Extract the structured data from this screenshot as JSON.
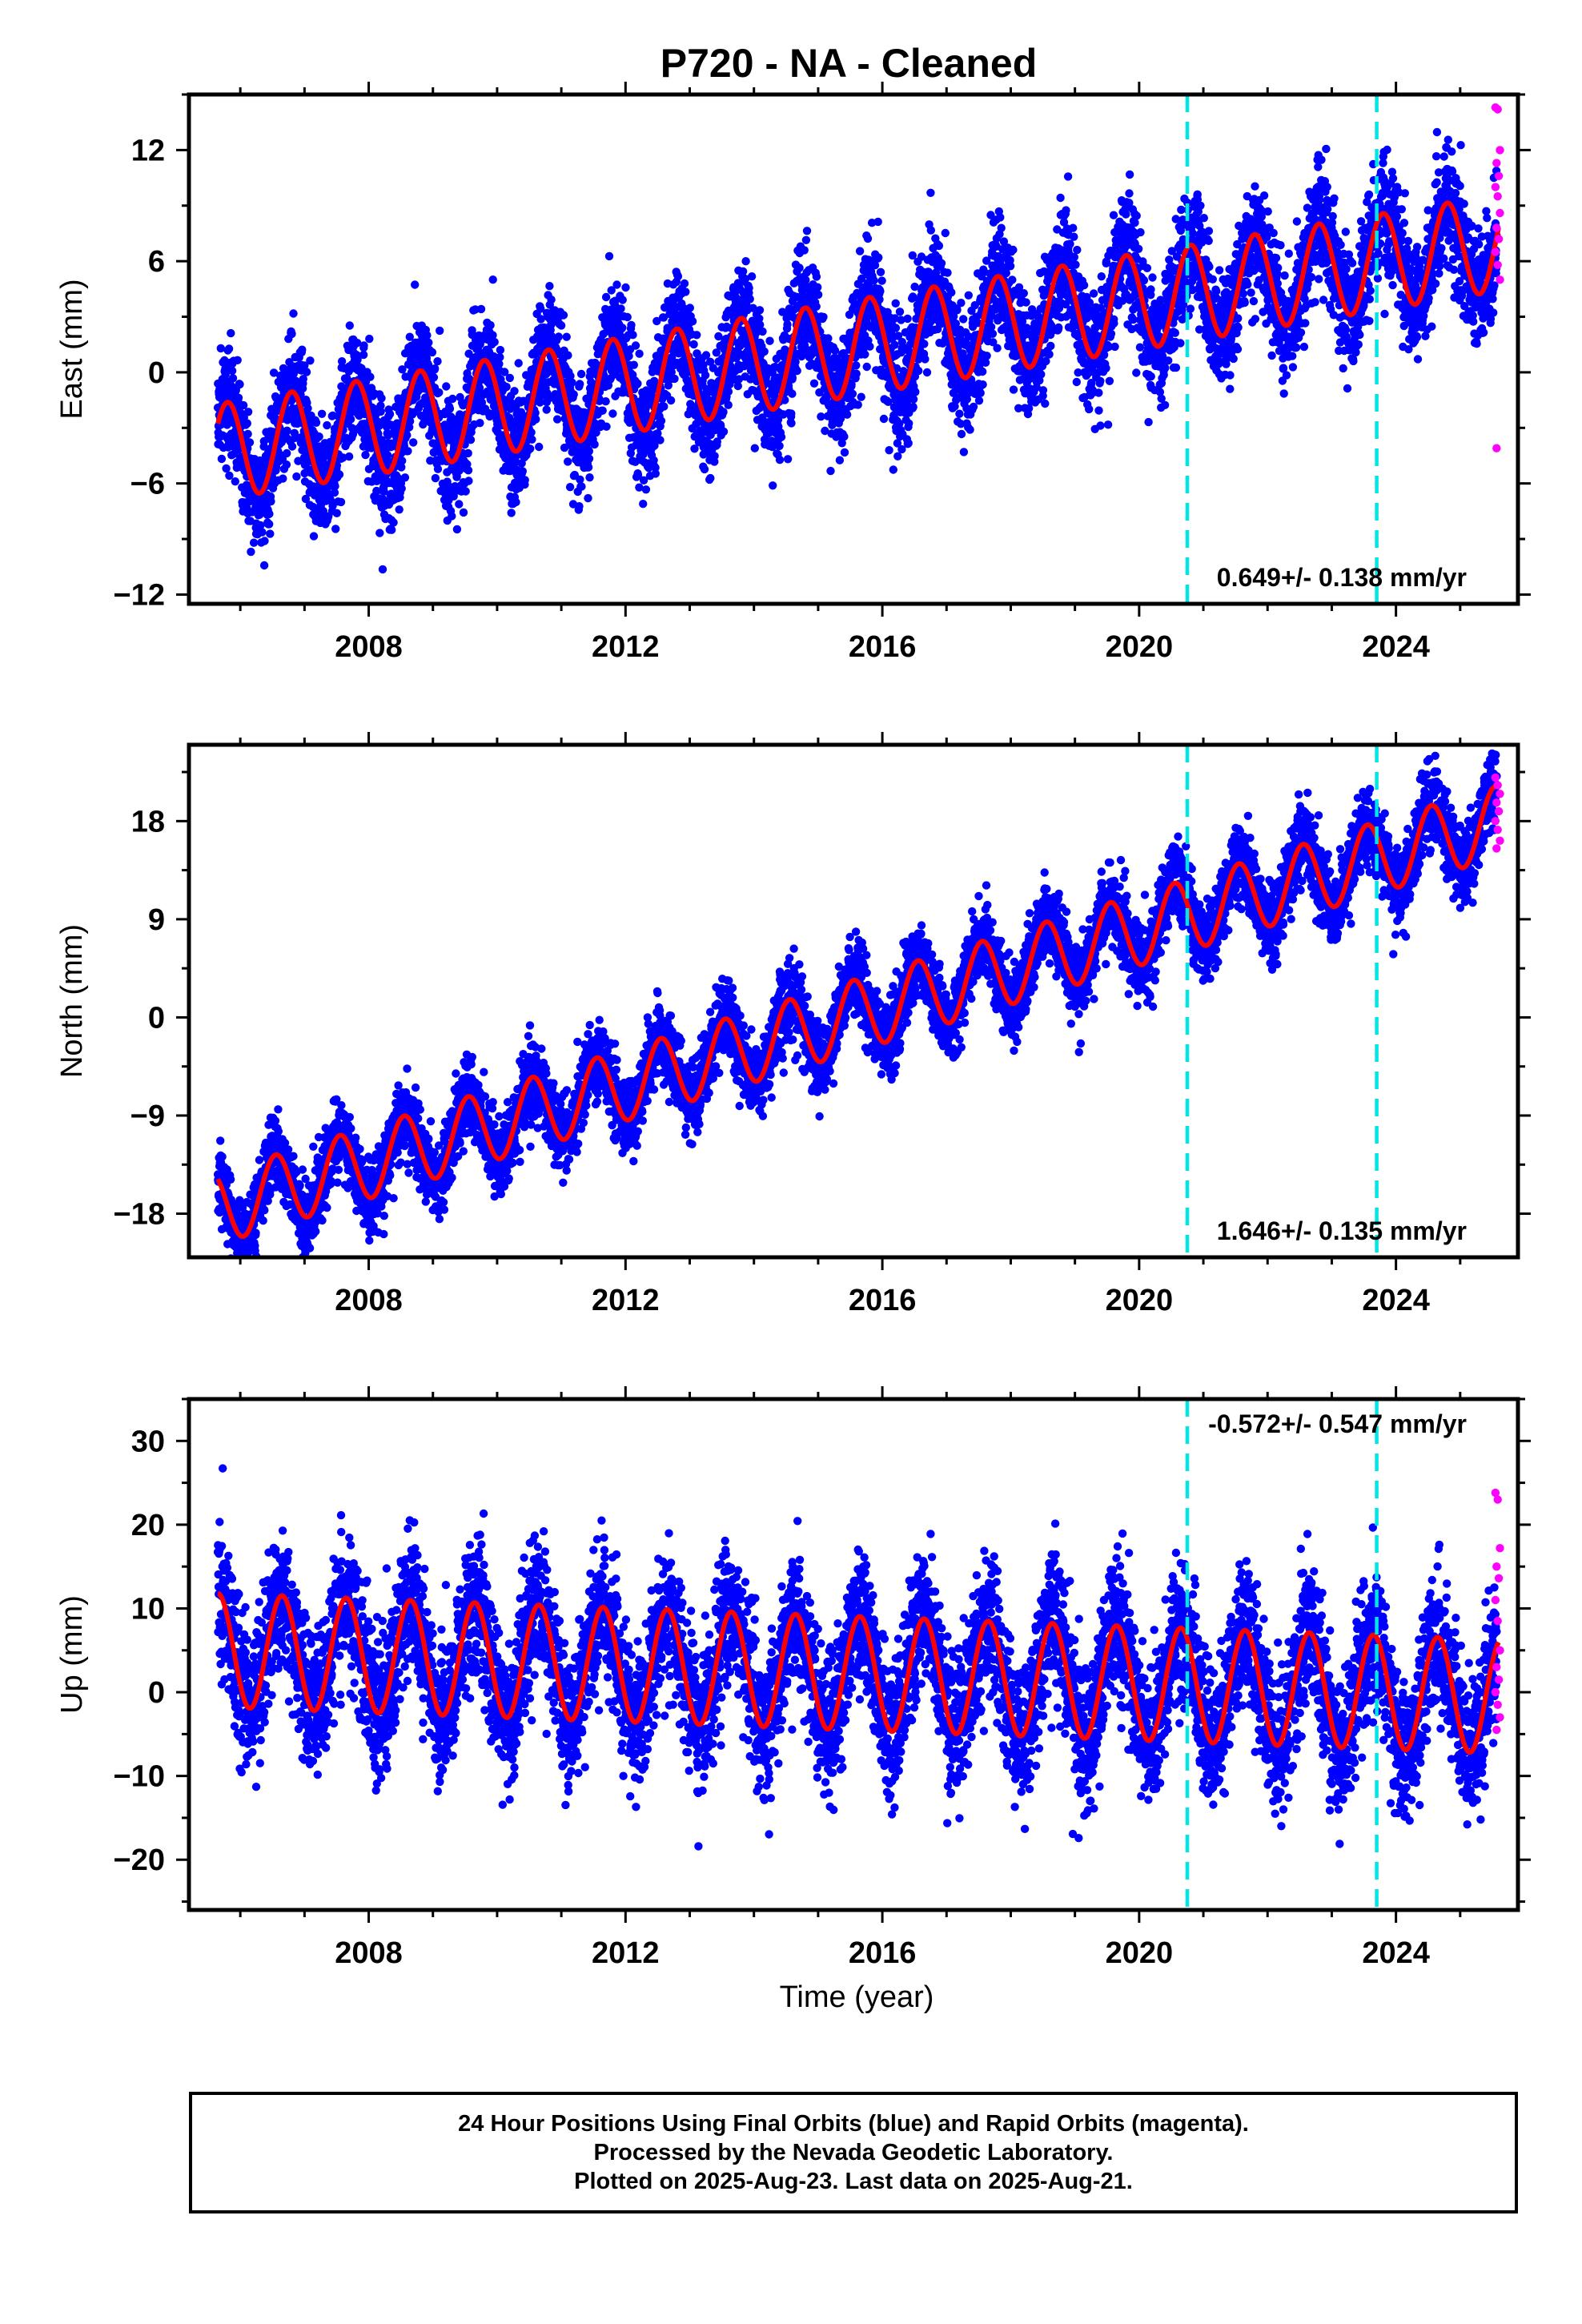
{
  "title": "P720  - NA - Cleaned",
  "colors": {
    "final_orbits": "#0000ff",
    "rapid_orbits": "#ff00ff",
    "model": "#ff0000",
    "markers": "#00e5e5"
  },
  "xlabel": "Time (year)",
  "chart_data": [
    {
      "type": "scatter",
      "ylabel": "East (mm)",
      "xlim": [
        2005.2,
        2025.9
      ],
      "ylim": [
        -12.5,
        15
      ],
      "xticks": [
        2008,
        2012,
        2016,
        2020,
        2024
      ],
      "yticks": [
        12,
        6,
        0,
        -6,
        -12
      ],
      "annotation": "0.649+/- 0.138 mm/yr",
      "vertical_markers": [
        2020.75,
        2023.7
      ],
      "model": {
        "start_year": 2005.65,
        "start_value": -4.3,
        "end_year": 2025.6,
        "end_value": 7.0,
        "seasonal_amplitude": 2.6,
        "peak_phase": 0.8
      },
      "scatter_range_mm": 4.5,
      "rapid_orbit_values": [
        14.3,
        14.2,
        12.0,
        11.3,
        10.6,
        10.0,
        9.5,
        8.6,
        7.8,
        7.2,
        6.5,
        5.8,
        5.0,
        -4.1
      ],
      "rapid_x_range": [
        2025.55,
        2025.62
      ],
      "grid": false
    },
    {
      "type": "scatter",
      "ylabel": "North (mm)",
      "xlim": [
        2005.2,
        2025.9
      ],
      "ylim": [
        -22,
        25
      ],
      "xticks": [
        2008,
        2012,
        2016,
        2020,
        2024
      ],
      "yticks": [
        18,
        9,
        0,
        -9,
        -18
      ],
      "annotation": "1.646+/- 0.135 mm/yr",
      "vertical_markers": [
        2020.75,
        2023.7
      ],
      "model": {
        "start_year": 2005.65,
        "start_value": -17.5,
        "end_year": 2025.6,
        "end_value": 18.0,
        "seasonal_amplitude": 3.3,
        "peak_phase": 0.55
      },
      "scatter_range_mm": 5.0,
      "rapid_orbit_values": [
        22.0,
        21.3,
        20.5,
        19.7,
        18.9,
        18.0,
        17.2,
        16.2,
        15.5
      ],
      "rapid_x_range": [
        2025.55,
        2025.62
      ],
      "grid": false
    },
    {
      "type": "scatter",
      "ylabel": "Up (mm)",
      "xlim": [
        2005.2,
        2025.9
      ],
      "ylim": [
        -26,
        35
      ],
      "xticks": [
        2008,
        2012,
        2016,
        2020,
        2024
      ],
      "yticks": [
        30,
        20,
        10,
        0,
        -10,
        -20
      ],
      "annotation": "-0.572+/- 0.547 mm/yr",
      "vertical_markers": [
        2020.75,
        2023.7
      ],
      "model": {
        "start_year": 2005.65,
        "start_value": 5.0,
        "end_year": 2025.6,
        "end_value": -0.5,
        "seasonal_amplitude": 6.8,
        "peak_phase": 0.65
      },
      "scatter_range_mm": 12.0,
      "rapid_orbit_values": [
        23.8,
        23.0,
        17.2,
        15.0,
        13.6,
        11.0,
        8.5,
        5.0,
        3.0,
        1.5,
        0.0,
        -1.5,
        -3.0,
        -4.5
      ],
      "rapid_x_range": [
        2025.55,
        2025.62
      ],
      "grid": false
    }
  ],
  "footer": {
    "line1": "24 Hour Positions Using Final Orbits (blue) and Rapid Orbits (magenta).",
    "line2": "Processed by the Nevada Geodetic Laboratory.",
    "line3": "Plotted on 2025-Aug-23. Last data on 2025-Aug-21."
  }
}
